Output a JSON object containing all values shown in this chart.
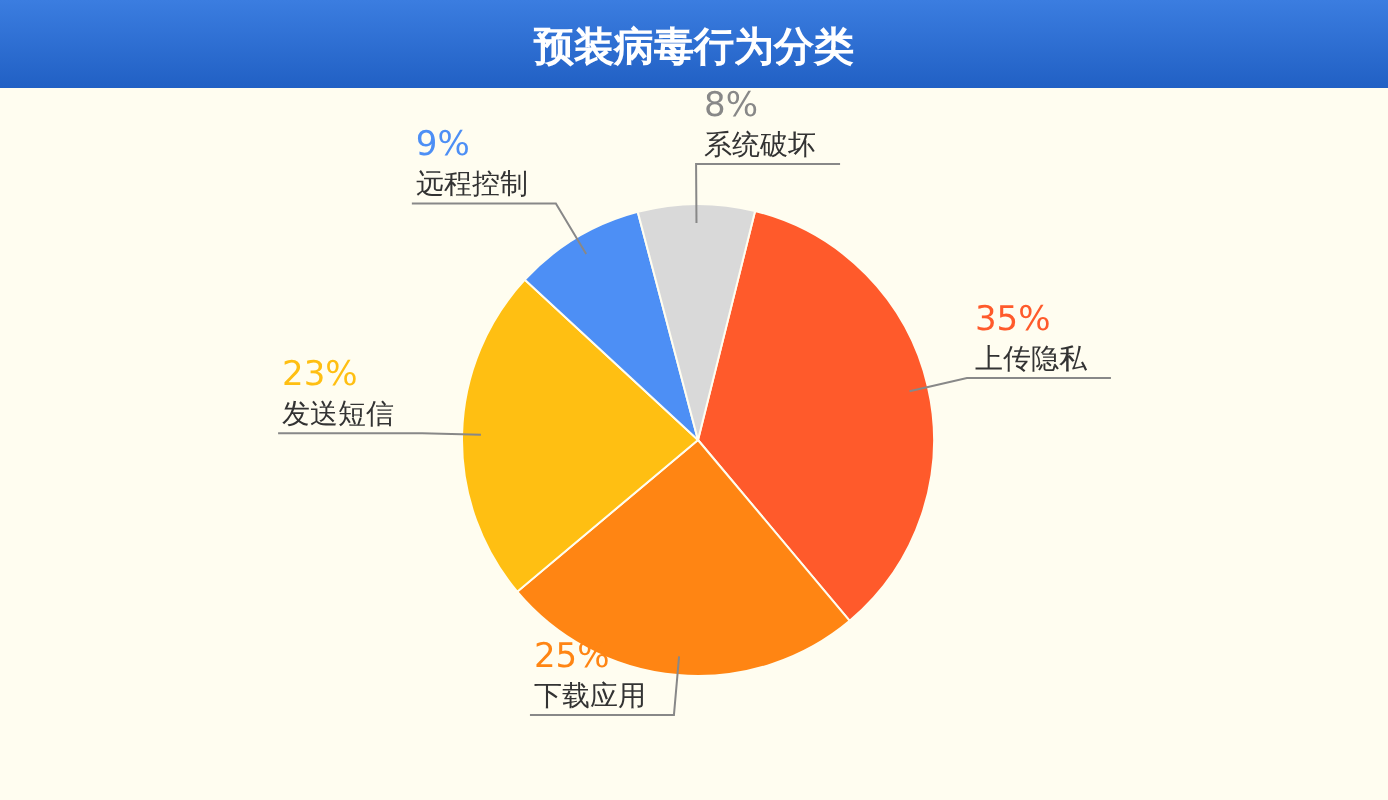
{
  "chart_data": {
    "type": "pie",
    "title": "预装病毒行为分类",
    "categories": [
      "上传隐私",
      "下载应用",
      "发送短信",
      "远程控制",
      "系统破坏"
    ],
    "values": [
      35,
      25,
      23,
      9,
      8
    ],
    "colors": [
      "#ff5a2b",
      "#ff8513",
      "#ffbf12",
      "#4d8ff5",
      "#d9d9d9"
    ],
    "value_labels": [
      "35%",
      "25%",
      "23%",
      "9%",
      "8%"
    ]
  }
}
